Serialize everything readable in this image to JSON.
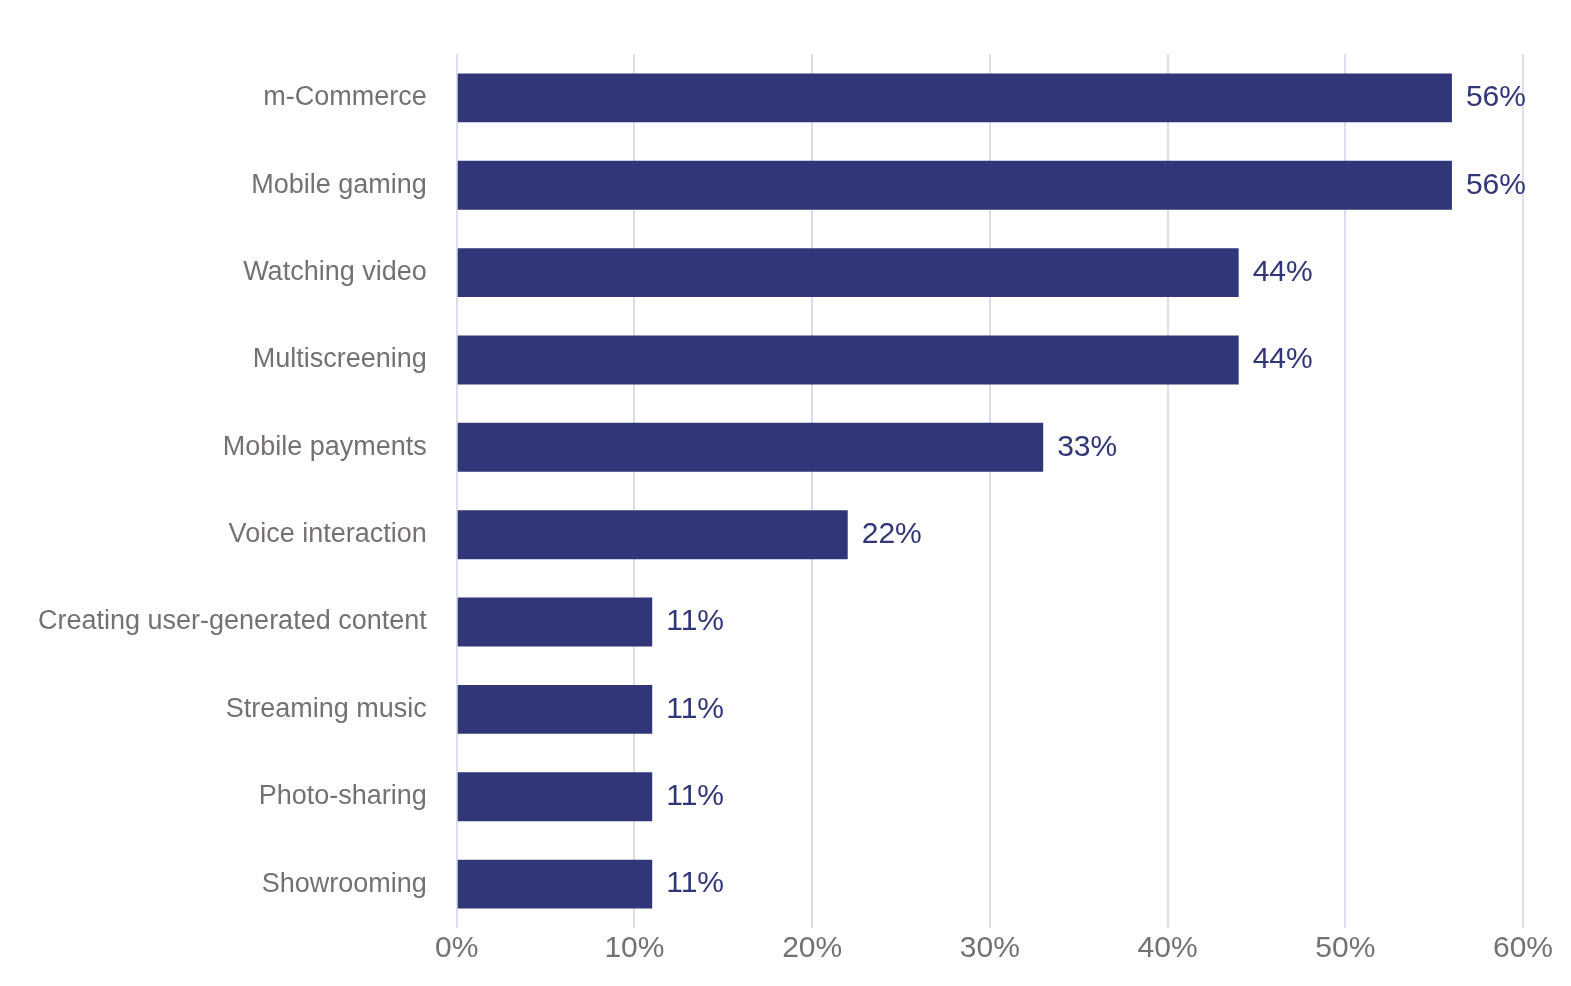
{
  "chart_data": {
    "type": "bar",
    "orientation": "horizontal",
    "categories": [
      "m-Commerce",
      "Mobile gaming",
      "Watching video",
      "Multiscreening",
      "Mobile payments",
      "Voice interaction",
      "Creating user-generated content",
      "Streaming music",
      "Photo-sharing",
      "Showrooming"
    ],
    "values": [
      56,
      56,
      44,
      44,
      33,
      22,
      11,
      11,
      11,
      11
    ],
    "color": "#303677",
    "xlim": [
      0,
      60
    ],
    "xticks": [
      {
        "value": 0,
        "label": "0%"
      },
      {
        "value": 10,
        "label": "10%"
      },
      {
        "value": 20,
        "label": "20%"
      },
      {
        "value": 30,
        "label": "30%"
      },
      {
        "value": 40,
        "label": "40%"
      },
      {
        "value": 50,
        "label": "50%"
      },
      {
        "value": 60,
        "label": "60%"
      }
    ],
    "value_labels": [
      "56%",
      "56%",
      "44%",
      "44%",
      "33%",
      "22%",
      "11%",
      "11%",
      "11%",
      "11%"
    ],
    "grid": "x"
  }
}
